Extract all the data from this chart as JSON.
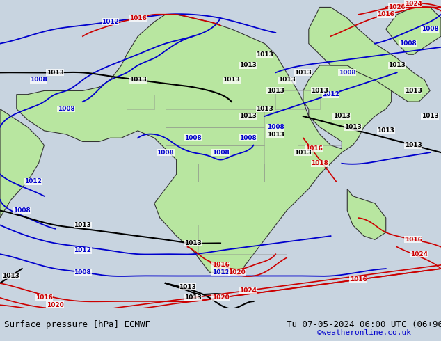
{
  "title_left": "Surface pressure [hPa] ECMWF",
  "title_right": "Tu 07-05-2024 06:00 UTC (06+96)",
  "credit": "©weatheronline.co.uk",
  "bg_color": "#c8d4e0",
  "land_color": "#b8e6a0",
  "border_color": "#888888",
  "ocean_color": "#c8d4e0",
  "text_color_black": "#000000",
  "text_color_blue": "#0000cc",
  "text_color_red": "#cc0000",
  "bottom_bar_color": "#d8d8d8",
  "figsize": [
    6.34,
    4.9
  ],
  "dpi": 100
}
